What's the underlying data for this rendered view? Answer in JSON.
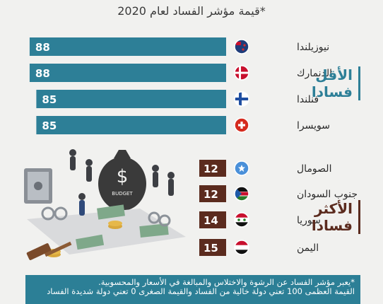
{
  "subtitle": "*قيمة مؤشر الفساد لعام 2020",
  "groups": {
    "least_line1": "الأقل",
    "least_line2": "فسادا",
    "most_line1": "الأكثر",
    "most_line2": "فسادا"
  },
  "note": {
    "line1": "*يعبر مؤشر الفساد عن الرشوة والاختلاس والمبالغة في الأسعار والمحسوبية.",
    "line2": "القيمة العظمى 100 تعني دولة خالية من الفساد والقيمة الصغرى 0 تعني دولة شديدة الفساد"
  },
  "illustration_text": {
    "bag_symbol": "$",
    "bag_label": "BUDGET"
  },
  "colors": {
    "least_bar": "#2d7f97",
    "most_box": "#5b2b1e",
    "accent": "#2c7f96"
  },
  "chart_data": {
    "type": "bar",
    "orientation": "horizontal",
    "xlim": [
      0,
      100
    ],
    "categories": [
      "نيوزيلندا",
      "الدنمارك",
      "فنلندا",
      "سويسرا",
      "الصومال",
      "جنوب السودان",
      "سوريا",
      "اليمن"
    ],
    "flags": [
      "new-zealand-flag",
      "denmark-flag",
      "finland-flag",
      "switzerland-flag",
      "somalia-flag",
      "south-sudan-flag",
      "syria-flag",
      "yemen-flag"
    ],
    "groups": [
      "least",
      "least",
      "least",
      "least",
      "most",
      "most",
      "most",
      "most"
    ],
    "values": [
      88,
      88,
      85,
      85,
      12,
      12,
      14,
      15
    ]
  }
}
